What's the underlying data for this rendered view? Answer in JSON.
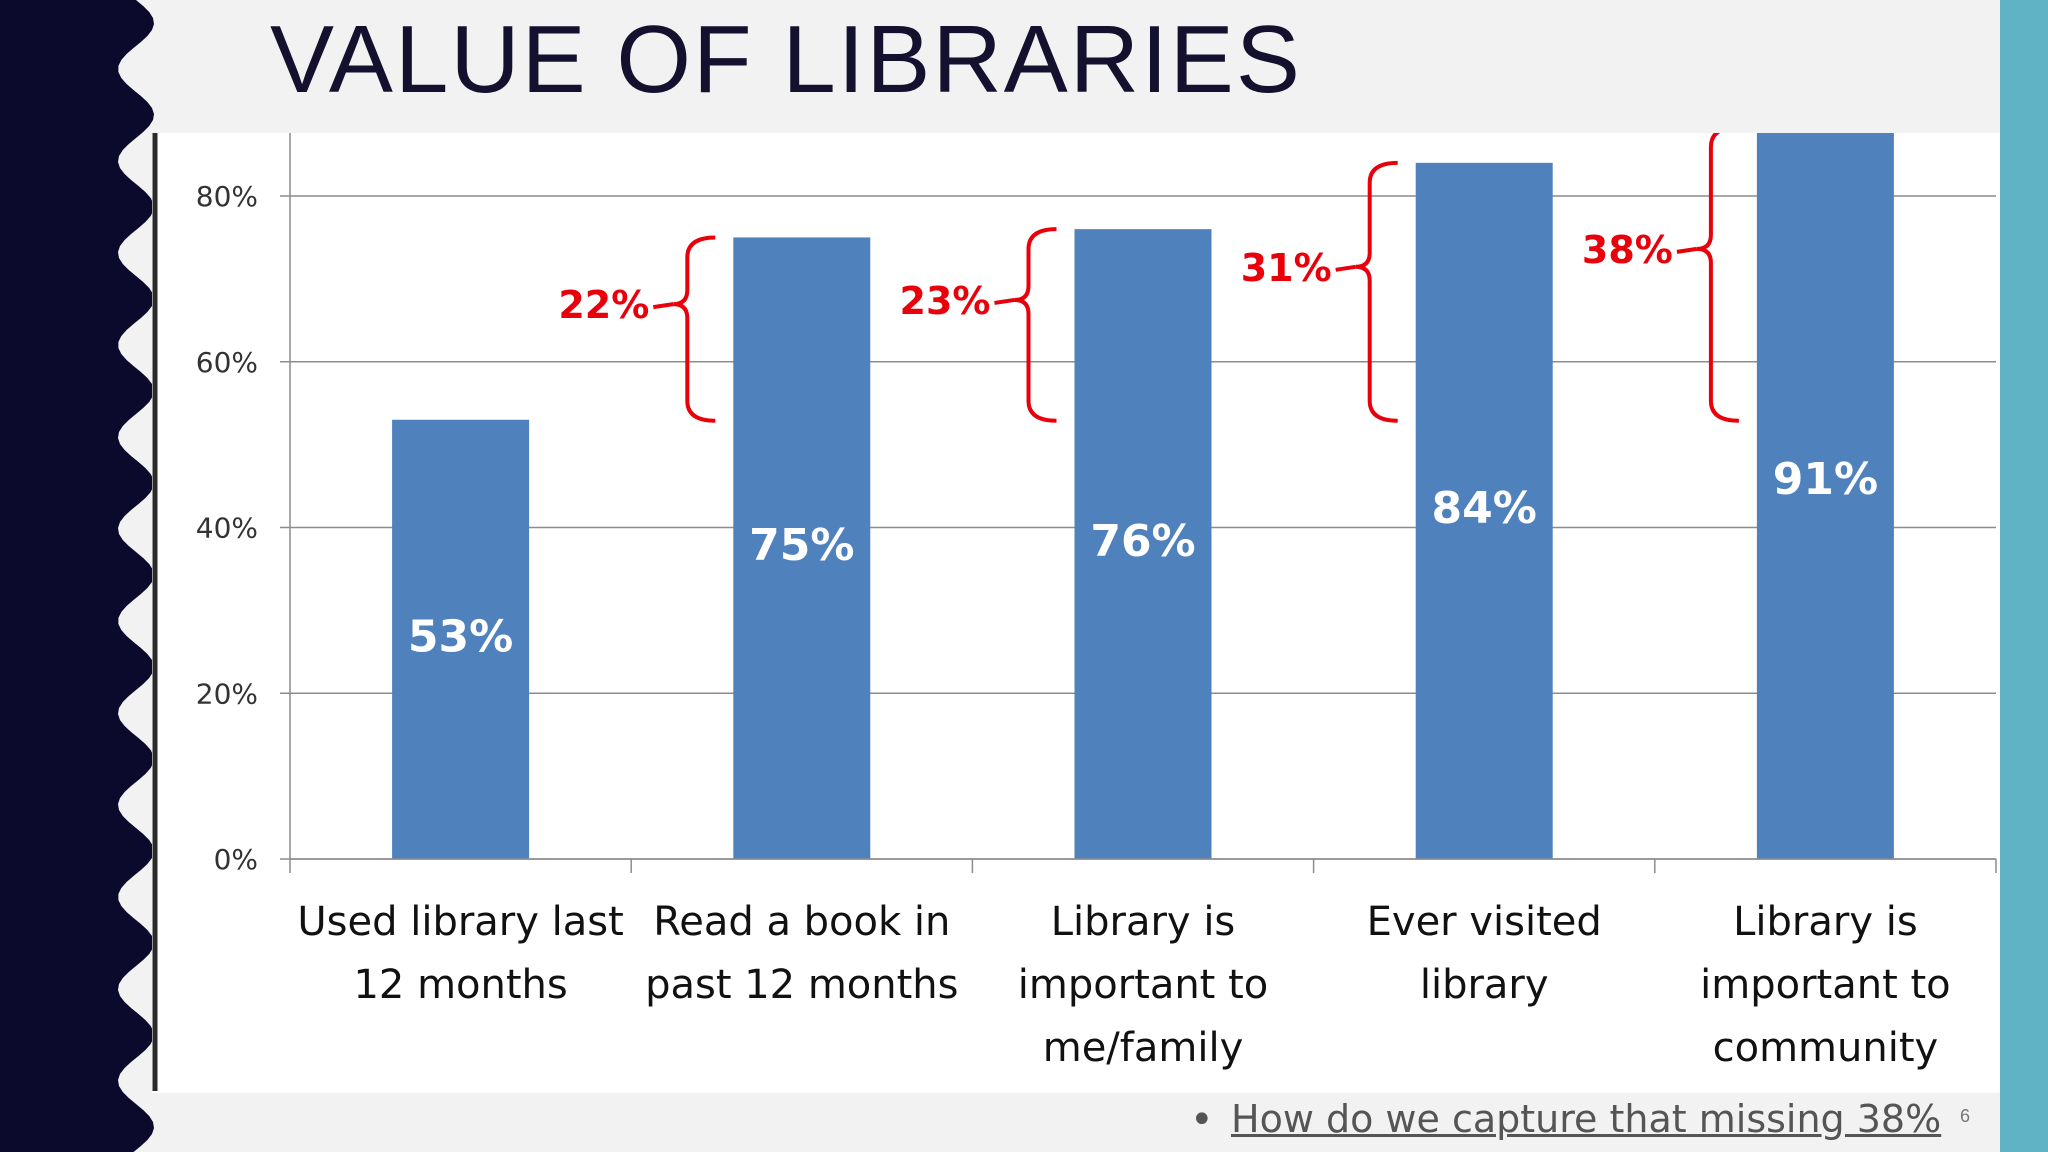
{
  "slide": {
    "title": "VALUE OF LIBRARIES",
    "footer_text": "How do we capture that missing 38%",
    "bullet": "•",
    "number": "6",
    "colors": {
      "left_band": "#0c0a2c",
      "right_strip": "#5fb3c4",
      "background": "#f2f2f2"
    }
  },
  "chart_data": {
    "type": "bar",
    "title": "",
    "xlabel": "",
    "ylabel": "",
    "categories": [
      [
        "Used library last",
        "12 months"
      ],
      [
        "Read a book in",
        "past 12 months"
      ],
      [
        "Library is",
        "important to",
        "me/family"
      ],
      [
        "Ever visited",
        "library"
      ],
      [
        "Library is",
        "important to",
        "community"
      ]
    ],
    "values": [
      53,
      75,
      76,
      84,
      91
    ],
    "data_labels": [
      "53%",
      "75%",
      "76%",
      "84%",
      "91%"
    ],
    "yticks": [
      "0%",
      "20%",
      "40%",
      "60%",
      "80%"
    ],
    "ytick_values": [
      0,
      20,
      40,
      60,
      80
    ],
    "ylim": [
      0,
      88
    ],
    "grid": true,
    "bar_color": "#4f81bd",
    "annotations": [
      {
        "label": "22%",
        "between": [
          0,
          1
        ]
      },
      {
        "label": "23%",
        "between": [
          0,
          2
        ]
      },
      {
        "label": "31%",
        "between": [
          0,
          3
        ]
      },
      {
        "label": "38%",
        "between": [
          0,
          4
        ]
      }
    ],
    "annotation_color": "#e8000b"
  }
}
